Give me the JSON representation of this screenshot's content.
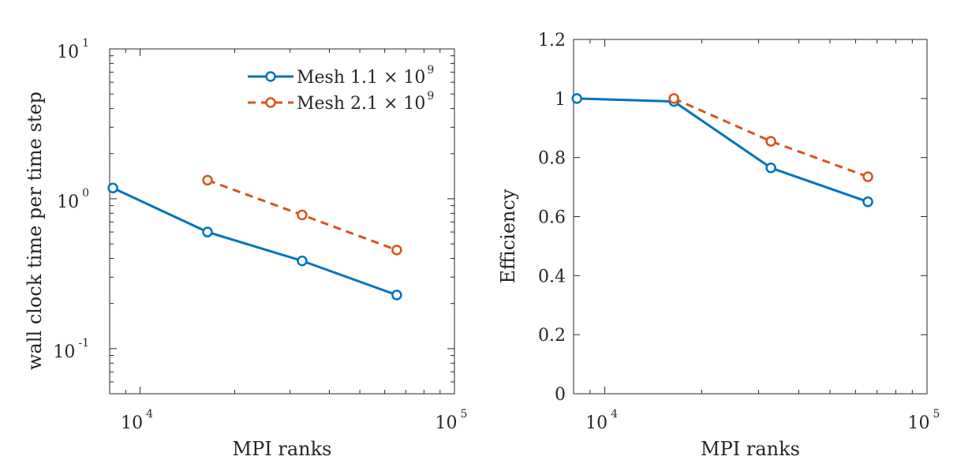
{
  "chart_data": [
    {
      "type": "line",
      "xscale": "log",
      "yscale": "log",
      "xlim": [
        8000,
        100000
      ],
      "ylim": [
        0.05,
        10
      ],
      "xlabel": "MPI ranks",
      "ylabel": "wall clock time per time step",
      "xticks": [
        {
          "value": 10000,
          "base": "10",
          "exp": "4"
        },
        {
          "value": 100000,
          "base": "10",
          "exp": "5"
        }
      ],
      "yticks": [
        {
          "value": 0.1,
          "base": "10",
          "exp": "-1"
        },
        {
          "value": 1,
          "base": "10",
          "exp": "0"
        },
        {
          "value": 10,
          "base": "10",
          "exp": "1"
        }
      ],
      "legend_position": "top-right",
      "series": [
        {
          "name": "Mesh 1.1 × 10",
          "sup": "9",
          "color": "#0072BD",
          "dash": "solid",
          "x": [
            8192,
            16384,
            32768,
            65536
          ],
          "y": [
            1.18,
            0.6,
            0.385,
            0.228
          ]
        },
        {
          "name": "Mesh 2.1 × 10",
          "sup": "9",
          "color": "#D95319",
          "dash": "dashed",
          "x": [
            16384,
            32768,
            65536
          ],
          "y": [
            1.33,
            0.78,
            0.455
          ]
        }
      ]
    },
    {
      "type": "line",
      "xscale": "log",
      "yscale": "linear",
      "xlim": [
        8000,
        100000
      ],
      "ylim": [
        0,
        1.2
      ],
      "xlabel": "MPI ranks",
      "ylabel": "Efficiency",
      "xticks": [
        {
          "value": 10000,
          "base": "10",
          "exp": "4"
        },
        {
          "value": 100000,
          "base": "10",
          "exp": "5"
        }
      ],
      "yticks": [
        {
          "value": 0,
          "label": "0"
        },
        {
          "value": 0.2,
          "label": "0.2"
        },
        {
          "value": 0.4,
          "label": "0.4"
        },
        {
          "value": 0.6,
          "label": "0.6"
        },
        {
          "value": 0.8,
          "label": "0.8"
        },
        {
          "value": 1,
          "label": "1"
        },
        {
          "value": 1.2,
          "label": "1.2"
        }
      ],
      "series": [
        {
          "name": "Mesh 1.1 × 10",
          "sup": "9",
          "color": "#0072BD",
          "dash": "solid",
          "x": [
            8192,
            16384,
            32768,
            65536
          ],
          "y": [
            1.0,
            0.99,
            0.765,
            0.65
          ]
        },
        {
          "name": "Mesh 2.1 × 10",
          "sup": "9",
          "color": "#D95319",
          "dash": "dashed",
          "x": [
            16384,
            32768,
            65536
          ],
          "y": [
            1.0,
            0.855,
            0.735
          ]
        }
      ]
    }
  ]
}
